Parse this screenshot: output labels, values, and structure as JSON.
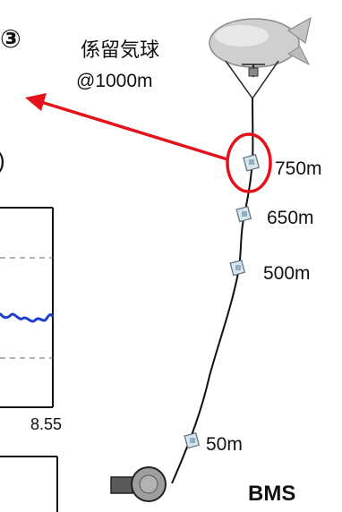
{
  "panel_marker": "③",
  "balloon": {
    "name": "係留気球",
    "altitude": "@1000m"
  },
  "sensors": [
    {
      "altitude": "750m"
    },
    {
      "altitude": "650m"
    },
    {
      "altitude": "500m"
    },
    {
      "altitude": "50m"
    }
  ],
  "ground_station": "BMS",
  "inset_plot": {
    "edge_char": ")",
    "tick_label": "8.55"
  },
  "colors": {
    "highlight": "#e5121b",
    "series": "#1a3fd1",
    "tether": "#111111"
  }
}
